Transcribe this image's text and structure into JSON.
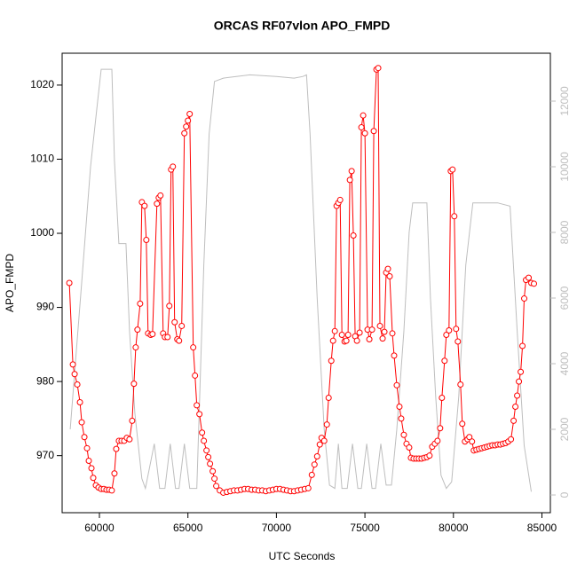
{
  "chart_data": {
    "type": "line",
    "title": "ORCAS RF07vlon APO_FMPD",
    "xlabel": "UTC Seconds",
    "ylabel": "APO_FMPD",
    "xlim": [
      57894,
      85477
    ],
    "ylim": [
      962.3,
      1024.3
    ],
    "y2lim": [
      -540,
      13459
    ],
    "xticks": [
      60000,
      65000,
      70000,
      75000,
      80000,
      85000
    ],
    "yticks": [
      970,
      980,
      990,
      1000,
      1010,
      1020
    ],
    "y2ticks": [
      0,
      2000,
      4000,
      6000,
      8000,
      10000,
      12000
    ],
    "series": [
      {
        "color": "#ff0000",
        "marker": "circle",
        "x": [
          58300,
          58500,
          58600,
          58750,
          58900,
          59000,
          59150,
          59300,
          59400,
          59550,
          59650,
          59800,
          59950,
          60100,
          60250,
          60400,
          60550,
          60700,
          60850,
          60950,
          61100,
          61250,
          61400,
          61550,
          61700,
          61850,
          61950,
          62050,
          62150,
          62300,
          62400,
          62550,
          62650,
          62750,
          62900,
          63000,
          63250,
          63350,
          63450,
          63600,
          63700,
          63850,
          63950,
          64050,
          64150,
          64250,
          64400,
          64500,
          64650,
          64800,
          64900,
          65000,
          65100,
          65300,
          65400,
          65500,
          65650,
          65800,
          65900,
          66050,
          66150,
          66250,
          66400,
          66500,
          66600,
          66800,
          67000,
          67200,
          67400,
          67600,
          67800,
          68000,
          68200,
          68400,
          68600,
          68800,
          69000,
          69200,
          69400,
          69600,
          69800,
          70000,
          70200,
          70400,
          70600,
          70800,
          71000,
          71200,
          71400,
          71600,
          71800,
          72000,
          72150,
          72300,
          72450,
          72550,
          72700,
          72850,
          72950,
          73100,
          73200,
          73300,
          73400,
          73500,
          73600,
          73700,
          73850,
          73950,
          74050,
          74150,
          74250,
          74350,
          74450,
          74550,
          74700,
          74800,
          74900,
          75000,
          75150,
          75250,
          75400,
          75500,
          75650,
          75750,
          75850,
          76000,
          76100,
          76200,
          76300,
          76400,
          76550,
          76650,
          76800,
          76950,
          77050,
          77200,
          77350,
          77500,
          77600,
          77750,
          77900,
          78050,
          78200,
          78350,
          78500,
          78650,
          78800,
          78950,
          79100,
          79250,
          79350,
          79500,
          79600,
          79750,
          79850,
          79950,
          80050,
          80150,
          80250,
          80400,
          80500,
          80650,
          80800,
          80900,
          81050,
          81150,
          81300,
          81450,
          81600,
          81750,
          81900,
          82050,
          82200,
          82350,
          82500,
          82650,
          82800,
          82950,
          83100,
          83250,
          83400,
          83500,
          83600,
          83700,
          83800,
          83900,
          84000,
          84100,
          84250,
          84400,
          84550
        ],
        "values": [
          993.3,
          982.3,
          981,
          979.6,
          977.2,
          974.5,
          972.5,
          971,
          969.3,
          968.3,
          967,
          966,
          965.7,
          965.5,
          965.5,
          965.4,
          965.4,
          965.3,
          967.6,
          970.9,
          972,
          972,
          972,
          972.4,
          972.2,
          974.7,
          979.7,
          984.6,
          987,
          990.5,
          1004.2,
          1003.7,
          999.1,
          986.5,
          986.3,
          986.4,
          1004,
          1004.8,
          1005.1,
          986.5,
          986,
          986,
          990.2,
          1008.6,
          1009,
          988,
          985.7,
          985.5,
          987.5,
          1013.5,
          1014.4,
          1015.2,
          1016.1,
          984.6,
          980.8,
          976.8,
          975.6,
          973.1,
          972,
          970.7,
          969.8,
          968.9,
          967.9,
          966.9,
          965.9,
          965.3,
          965,
          965.1,
          965.2,
          965.3,
          965.3,
          965.4,
          965.5,
          965.5,
          965.4,
          965.4,
          965.3,
          965.3,
          965.2,
          965.3,
          965.4,
          965.5,
          965.5,
          965.4,
          965.3,
          965.2,
          965.2,
          965.3,
          965.4,
          965.5,
          965.6,
          967.4,
          968.8,
          969.9,
          971.5,
          972.4,
          972,
          974.2,
          977.8,
          982.8,
          985.5,
          986.8,
          1003.7,
          1004.1,
          1004.5,
          986.3,
          985.4,
          985.5,
          986.3,
          1007.2,
          1008.4,
          999.7,
          986.1,
          985.5,
          986.6,
          1014.3,
          1015.9,
          1013.5,
          987,
          985.7,
          987,
          1013.8,
          1022.1,
          1022.3,
          987.5,
          985.8,
          986.7,
          994.7,
          995.2,
          994.2,
          986.5,
          983.5,
          979.5,
          976.6,
          975,
          972.8,
          971.6,
          971.1,
          969.7,
          969.6,
          969.6,
          969.6,
          969.6,
          969.7,
          969.8,
          970,
          971.2,
          971.6,
          972,
          973.7,
          977.8,
          982.8,
          986.3,
          986.9,
          1008.4,
          1008.6,
          1002.3,
          987.1,
          985.4,
          979.6,
          974.3,
          971.9,
          972.2,
          972.5,
          971.9,
          970.7,
          970.8,
          970.9,
          971,
          971.1,
          971.2,
          971.3,
          971.4,
          971.4,
          971.5,
          971.5,
          971.6,
          971.7,
          971.9,
          972.2,
          974.7,
          976.6,
          978.1,
          980,
          981.3,
          984.8,
          991.2,
          993.7,
          994,
          993.3,
          993.2
        ]
      },
      {
        "color": "#bebebe",
        "axis": "y2",
        "x": [
          58350,
          59000,
          59500,
          59900,
          60100,
          60700,
          60850,
          61100,
          61500,
          61700,
          62000,
          62400,
          62600,
          63100,
          63400,
          63700,
          64000,
          64300,
          64500,
          64800,
          65100,
          65500,
          65900,
          66200,
          66500,
          67000,
          68500,
          70000,
          71000,
          71500,
          71700,
          71900,
          72300,
          72700,
          73000,
          73300,
          73500,
          73700,
          74000,
          74300,
          74600,
          74800,
          75100,
          75400,
          75600,
          75900,
          76200,
          76500,
          76800,
          77200,
          77500,
          77700,
          78500,
          78700,
          79000,
          79300,
          79600,
          79900,
          80300,
          80700,
          81100,
          82500,
          83200,
          83600,
          84000,
          84400
        ],
        "values": [
          2000,
          6500,
          10000,
          12000,
          12970,
          12970,
          10200,
          7660,
          7660,
          5000,
          2500,
          500,
          200,
          1560,
          200,
          200,
          1560,
          200,
          200,
          1560,
          200,
          200,
          7000,
          11000,
          12600,
          12700,
          12800,
          12750,
          12700,
          12750,
          12800,
          11000,
          6000,
          2000,
          300,
          200,
          1560,
          200,
          200,
          1560,
          200,
          200,
          1560,
          200,
          200,
          1560,
          300,
          300,
          2000,
          5000,
          8000,
          8900,
          8900,
          6000,
          3000,
          600,
          200,
          400,
          3000,
          7000,
          8900,
          8900,
          8800,
          5000,
          1500,
          100
        ]
      }
    ]
  }
}
